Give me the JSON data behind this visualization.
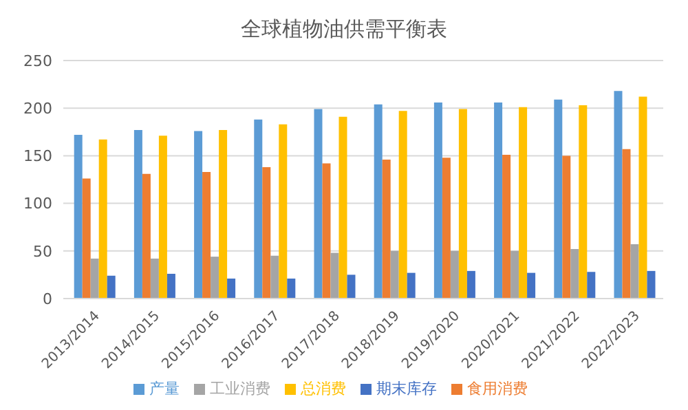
{
  "chart_data": {
    "type": "bar",
    "title": "全球植物油供需平衡表",
    "categories": [
      "2013/2014",
      "2014/2015",
      "2015/2016",
      "2016/2017",
      "2017/2018",
      "2018/2019",
      "2019/2020",
      "2020/2021",
      "2021/2022",
      "2022/2023"
    ],
    "series": [
      {
        "name": "产量",
        "color": "#5b9bd5",
        "values": [
          172,
          177,
          176,
          188,
          199,
          204,
          206,
          206,
          209,
          218
        ]
      },
      {
        "name": "食用消费",
        "color": "#ed7d31",
        "values": [
          126,
          131,
          133,
          138,
          142,
          146,
          148,
          151,
          150,
          157
        ]
      },
      {
        "name": "工业消费",
        "color": "#a5a5a5",
        "values": [
          42,
          42,
          44,
          45,
          48,
          50,
          50,
          50,
          52,
          57
        ]
      },
      {
        "name": "总消费",
        "color": "#ffc000",
        "values": [
          167,
          171,
          177,
          183,
          191,
          197,
          199,
          201,
          203,
          212
        ]
      },
      {
        "name": "期末库存",
        "color": "#4472c4",
        "values": [
          24,
          26,
          21,
          21,
          25,
          27,
          29,
          27,
          28,
          29
        ]
      }
    ],
    "ylim": [
      0,
      250
    ],
    "yticks": [
      0,
      50,
      100,
      150,
      200,
      250
    ],
    "grid": "y",
    "legend": "bottom"
  }
}
